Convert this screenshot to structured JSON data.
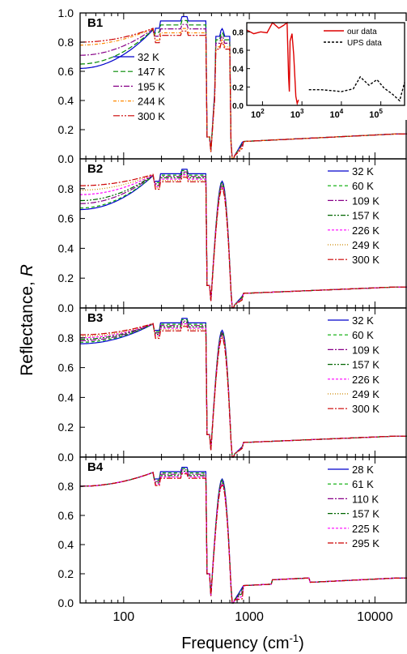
{
  "figure": {
    "ylabel_text": "Reflectance, ",
    "ylabel_symbol": "R",
    "xlabel_text": "Frequency (cm",
    "xlabel_sup": "-1",
    "xlabel_close": ")"
  },
  "chart_data": [
    {
      "type": "line",
      "panel_label": "B1",
      "xscale": "log",
      "xlim": [
        45,
        18000
      ],
      "ylim": [
        0.0,
        1.0
      ],
      "xticklabels": [
        "100",
        "1000",
        "10000"
      ],
      "yticklabels": [
        "0.0",
        "0.2",
        "0.4",
        "0.6",
        "0.8",
        "1.0"
      ],
      "legend_position": "center-left",
      "series": [
        {
          "name": "32 K",
          "color": "#0000cc",
          "dash": "",
          "lowR": 0.62,
          "peakFactor": 1.05,
          "dip2": 0.22
        },
        {
          "name": "147 K",
          "color": "#008800",
          "dash": "6,3",
          "lowR": 0.65,
          "peakFactor": 1.02,
          "dip2": 0.2
        },
        {
          "name": "195 K",
          "color": "#880088",
          "dash": "7,2,2,2",
          "lowR": 0.71,
          "peakFactor": 0.99,
          "dip2": 0.18
        },
        {
          "name": "244 K",
          "color": "#ff8800",
          "dash": "4,2,1,2",
          "lowR": 0.78,
          "peakFactor": 0.96,
          "dip2": 0.15
        },
        {
          "name": "300 K",
          "color": "#cc0000",
          "dash": "8,2,2,2,2,2",
          "lowR": 0.8,
          "peakFactor": 0.94,
          "dip2": 0.12
        }
      ],
      "inset": {
        "type": "line",
        "xscale": "log",
        "xlim": [
          40,
          400000
        ],
        "ylim": [
          0.0,
          0.9
        ],
        "xticklabels": [
          "10",
          "2",
          "10",
          "3",
          "10",
          "4",
          "10",
          "5"
        ],
        "yticklabels": [
          "0.0",
          "0.2",
          "0.4",
          "0.6",
          "0.8"
        ],
        "series": [
          {
            "name": "our data",
            "color": "#dd0000",
            "dash": "",
            "x": [
              40,
              60,
              90,
              130,
              180,
              260,
              340,
              420,
              460,
              480,
              500,
              560,
              620,
              700,
              760,
              820
            ],
            "y": [
              0.82,
              0.78,
              0.8,
              0.79,
              0.9,
              0.84,
              0.87,
              0.9,
              0.3,
              0.15,
              0.7,
              0.78,
              0.55,
              0.1,
              0.02,
              0.06
            ]
          },
          {
            "name": "UPS data",
            "color": "#000000",
            "dash": "3,2",
            "x": [
              1500,
              3000,
              6000,
              10000,
              20000,
              30000,
              50000,
              80000,
              120000,
              200000,
              300000,
              400000
            ],
            "y": [
              0.17,
              0.17,
              0.16,
              0.15,
              0.18,
              0.31,
              0.22,
              0.28,
              0.19,
              0.12,
              0.05,
              0.25
            ]
          }
        ]
      }
    },
    {
      "type": "line",
      "panel_label": "B2",
      "xscale": "log",
      "xlim": [
        45,
        18000
      ],
      "ylim": [
        0.0,
        1.0
      ],
      "yticklabels": [
        "0.0",
        "0.2",
        "0.4",
        "0.6",
        "0.8"
      ],
      "legend_position": "right",
      "series": [
        {
          "name": "32 K",
          "color": "#0000cc",
          "dash": "",
          "lowR": 0.66,
          "peakFactor": 1.0,
          "dip2": 0.14
        },
        {
          "name": "60 K",
          "color": "#00aa00",
          "dash": "4,3",
          "lowR": 0.67,
          "peakFactor": 0.99,
          "dip2": 0.13
        },
        {
          "name": "109 K",
          "color": "#880088",
          "dash": "7,2,2,2",
          "lowR": 0.7,
          "peakFactor": 0.98,
          "dip2": 0.12
        },
        {
          "name": "157 K",
          "color": "#006600",
          "dash": "6,2,2,2,2,2",
          "lowR": 0.72,
          "peakFactor": 0.97,
          "dip2": 0.11
        },
        {
          "name": "226 K",
          "color": "#ff00ff",
          "dash": "3,2",
          "lowR": 0.76,
          "peakFactor": 0.96,
          "dip2": 0.1
        },
        {
          "name": "249 K",
          "color": "#cc8800",
          "dash": "1,2",
          "lowR": 0.79,
          "peakFactor": 0.95,
          "dip2": 0.09
        },
        {
          "name": "300 K",
          "color": "#cc0000",
          "dash": "7,2,2,2",
          "lowR": 0.82,
          "peakFactor": 0.94,
          "dip2": 0.08
        }
      ]
    },
    {
      "type": "line",
      "panel_label": "B3",
      "xscale": "log",
      "xlim": [
        45,
        18000
      ],
      "ylim": [
        0.0,
        1.0
      ],
      "yticklabels": [
        "0.0",
        "0.2",
        "0.4",
        "0.6",
        "0.8"
      ],
      "legend_position": "right",
      "series": [
        {
          "name": "32 K",
          "color": "#0000cc",
          "dash": "",
          "lowR": 0.76,
          "peakFactor": 1.0,
          "dip2": 0.12
        },
        {
          "name": "60 K",
          "color": "#00aa00",
          "dash": "4,3",
          "lowR": 0.77,
          "peakFactor": 0.99,
          "dip2": 0.11
        },
        {
          "name": "109 K",
          "color": "#880088",
          "dash": "7,2,2,2",
          "lowR": 0.78,
          "peakFactor": 0.98,
          "dip2": 0.11
        },
        {
          "name": "157 K",
          "color": "#006600",
          "dash": "6,2,2,2,2,2",
          "lowR": 0.79,
          "peakFactor": 0.97,
          "dip2": 0.1
        },
        {
          "name": "226 K",
          "color": "#ff00ff",
          "dash": "3,2",
          "lowR": 0.8,
          "peakFactor": 0.96,
          "dip2": 0.1
        },
        {
          "name": "249 K",
          "color": "#cc8800",
          "dash": "1,2",
          "lowR": 0.81,
          "peakFactor": 0.95,
          "dip2": 0.09
        },
        {
          "name": "300 K",
          "color": "#cc0000",
          "dash": "7,2,2,2",
          "lowR": 0.82,
          "peakFactor": 0.94,
          "dip2": 0.09
        }
      ]
    },
    {
      "type": "line",
      "panel_label": "B4",
      "xscale": "log",
      "xlim": [
        45,
        18000
      ],
      "ylim": [
        0.0,
        1.0
      ],
      "xticklabels": [
        "100",
        "1000",
        "10000"
      ],
      "yticklabels": [
        "0.0",
        "0.2",
        "0.4",
        "0.6",
        "0.8"
      ],
      "legend_position": "right",
      "series": [
        {
          "name": "28 K",
          "color": "#0000cc",
          "dash": "",
          "lowR": 0.8,
          "peakFactor": 1.0,
          "dip2": 0.2
        },
        {
          "name": "61 K",
          "color": "#00aa00",
          "dash": "4,3",
          "lowR": 0.8,
          "peakFactor": 0.99,
          "dip2": 0.17
        },
        {
          "name": "110 K",
          "color": "#880088",
          "dash": "7,2,2,2",
          "lowR": 0.8,
          "peakFactor": 0.98,
          "dip2": 0.14
        },
        {
          "name": "157 K",
          "color": "#006600",
          "dash": "6,2,2,2,2,2",
          "lowR": 0.8,
          "peakFactor": 0.97,
          "dip2": 0.11
        },
        {
          "name": "225 K",
          "color": "#ff00ff",
          "dash": "3,2",
          "lowR": 0.8,
          "peakFactor": 0.96,
          "dip2": 0.06
        },
        {
          "name": "295 K",
          "color": "#cc0000",
          "dash": "7,2,2,2",
          "lowR": 0.8,
          "peakFactor": 0.95,
          "dip2": 0.02
        }
      ]
    }
  ]
}
